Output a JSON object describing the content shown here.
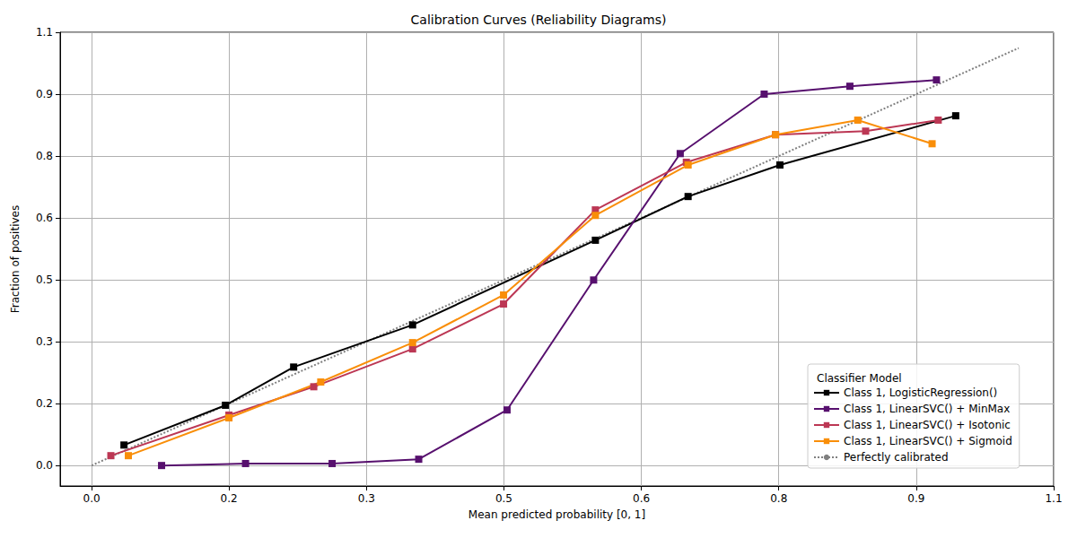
{
  "chart_data": {
    "type": "line",
    "title": "Calibration Curves (Reliability Diagrams)",
    "x_label": "Mean predicted probability [0, 1]",
    "y_label": "Fraction of positives",
    "legend_title": "Classifier Model",
    "legend": "lower right",
    "grid": true,
    "xlim": [
      -0.036,
      1.1
    ],
    "ylim": [
      -0.052,
      1.1
    ],
    "xticks": [
      {
        "value": 0,
        "label": "0.0"
      },
      {
        "value": 0.1571,
        "label": "0.2"
      },
      {
        "value": 0.3143,
        "label": "0.3"
      },
      {
        "value": 0.4714,
        "label": "0.5"
      },
      {
        "value": 0.6286,
        "label": "0.6"
      },
      {
        "value": 0.7857,
        "label": "0.8"
      },
      {
        "value": 0.9429,
        "label": "0.9"
      },
      1.1
    ],
    "yticks": [
      {
        "value": 0,
        "label": "0.0"
      },
      {
        "value": 0.1571,
        "label": "0.2"
      },
      {
        "value": 0.3143,
        "label": "0.3"
      },
      {
        "value": 0.4714,
        "label": "0.5"
      },
      {
        "value": 0.6286,
        "label": "0.6"
      },
      {
        "value": 0.7857,
        "label": "0.8"
      },
      {
        "value": 0.9429,
        "label": "0.9"
      },
      1.1
    ],
    "series": [
      {
        "name": "Class 1, LogisticRegression()",
        "color": "#000000",
        "marker": "square",
        "line_style": "solid",
        "x": [
          0.037,
          0.153,
          0.231,
          0.367,
          0.576,
          0.682,
          0.787,
          0.988
        ],
        "values": [
          0.052,
          0.153,
          0.25,
          0.357,
          0.572,
          0.683,
          0.763,
          0.888
        ]
      },
      {
        "name": "Class 1, LinearSVC() + MinMax",
        "color": "#57106e",
        "marker": "square",
        "line_style": "solid",
        "x": [
          0.08,
          0.176,
          0.275,
          0.374,
          0.475,
          0.574,
          0.673,
          0.769,
          0.867,
          0.966
        ],
        "values": [
          0.0,
          0.005,
          0.005,
          0.016,
          0.141,
          0.471,
          0.792,
          0.943,
          0.963,
          0.979
        ]
      },
      {
        "name": "Class 1, LinearSVC() + Isotonic",
        "color": "#bc3754",
        "marker": "square",
        "line_style": "solid",
        "x": [
          0.022,
          0.157,
          0.254,
          0.367,
          0.471,
          0.576,
          0.68,
          0.782,
          0.885,
          0.968
        ],
        "values": [
          0.025,
          0.128,
          0.2,
          0.296,
          0.41,
          0.649,
          0.77,
          0.84,
          0.849,
          0.877
        ]
      },
      {
        "name": "Class 1, LinearSVC() + Sigmoid",
        "color": "#f98e09",
        "marker": "square",
        "line_style": "solid",
        "x": [
          0.042,
          0.157,
          0.262,
          0.367,
          0.471,
          0.576,
          0.682,
          0.782,
          0.876,
          0.961
        ],
        "values": [
          0.025,
          0.121,
          0.212,
          0.312,
          0.433,
          0.635,
          0.763,
          0.84,
          0.877,
          0.817
        ]
      },
      {
        "name": "Perfectly calibrated",
        "color": "#808080",
        "marker": "none",
        "line_style": "dotted",
        "x": [
          0,
          1.06
        ],
        "values": [
          0,
          1.06
        ]
      }
    ]
  }
}
